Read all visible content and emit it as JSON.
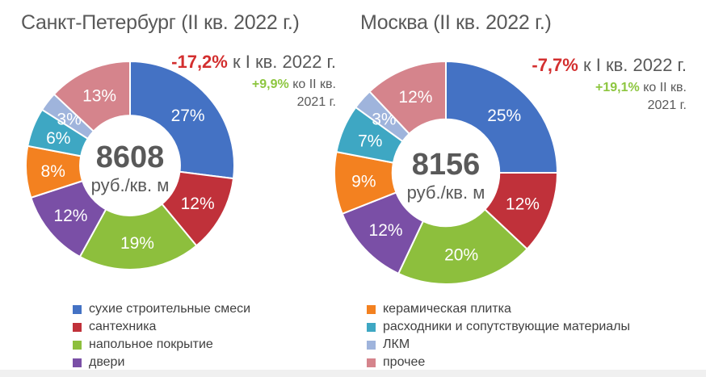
{
  "chart_data": [
    {
      "type": "pie",
      "title": "Санкт-Петербург (II кв. 2022 г.)",
      "center_value": "8608",
      "center_unit": "руб./кв. м",
      "change_q": {
        "value": "-17,2%",
        "text": "к I кв. 2022 г."
      },
      "change_y": {
        "value": "+9,9%",
        "text": "ко II кв.",
        "text2": "2021 г."
      },
      "slices": [
        {
          "name": "сухие строительные смеси",
          "value": 27,
          "label": "27%"
        },
        {
          "name": "сантехника",
          "value": 12,
          "label": "12%"
        },
        {
          "name": "напольное покрытие",
          "value": 19,
          "label": "19%"
        },
        {
          "name": "двери",
          "value": 12,
          "label": "12%"
        },
        {
          "name": "керамическая плитка",
          "value": 8,
          "label": "8%"
        },
        {
          "name": "расходники и сопутствующие материалы",
          "value": 6,
          "label": "6%"
        },
        {
          "name": "ЛКМ",
          "value": 3,
          "label": "3%"
        },
        {
          "name": "прочее",
          "value": 13,
          "label": "13%"
        }
      ]
    },
    {
      "type": "pie",
      "title": "Москва (II кв. 2022 г.)",
      "center_value": "8156",
      "center_unit": "руб./кв. м",
      "change_q": {
        "value": "-7,7%",
        "text": "к I кв. 2022 г."
      },
      "change_y": {
        "value": "+19,1%",
        "text": "ко II кв.",
        "text2": "2021 г."
      },
      "slices": [
        {
          "name": "сухие строительные смеси",
          "value": 25,
          "label": "25%"
        },
        {
          "name": "сантехника",
          "value": 12,
          "label": "12%"
        },
        {
          "name": "напольное покрытие",
          "value": 20,
          "label": "20%"
        },
        {
          "name": "двери",
          "value": 12,
          "label": "12%"
        },
        {
          "name": "керамическая плитка",
          "value": 9,
          "label": "9%"
        },
        {
          "name": "расходники и сопутствующие материалы",
          "value": 7,
          "label": "7%"
        },
        {
          "name": "ЛКМ",
          "value": 3,
          "label": "3%"
        },
        {
          "name": "прочее",
          "value": 12,
          "label": "12%"
        }
      ]
    }
  ],
  "legend": [
    {
      "label": "сухие строительные смеси",
      "color": "#4472c4"
    },
    {
      "label": "сантехника",
      "color": "#c0313a"
    },
    {
      "label": "напольное покрытие",
      "color": "#8dbf3d"
    },
    {
      "label": "двери",
      "color": "#7a4fa6"
    },
    {
      "label": "керамическая плитка",
      "color": "#f38120"
    },
    {
      "label": "расходники и сопутствующие материалы",
      "color": "#3ea7c3"
    },
    {
      "label": "ЛКМ",
      "color": "#9fb4dc"
    },
    {
      "label": "прочее",
      "color": "#d5848c"
    }
  ]
}
